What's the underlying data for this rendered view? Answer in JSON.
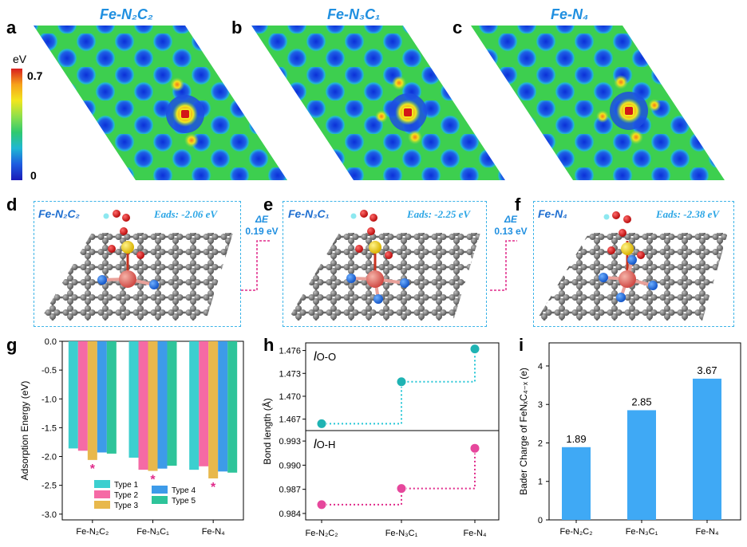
{
  "top": {
    "labels": [
      "a",
      "b",
      "c"
    ],
    "titles": [
      "Fe-N₂C₂",
      "Fe-N₃C₁",
      "Fe-N₄"
    ],
    "colorbar": {
      "unit": "eV",
      "max_label": "0.7",
      "min_label": "0"
    }
  },
  "mid": {
    "labels": [
      "d",
      "e",
      "f"
    ],
    "titles": [
      "Fe-N₂C₂",
      "Fe-N₃C₁",
      "Fe-N₄"
    ],
    "eads": [
      "Eads: -2.06 eV",
      "Eads: -2.25 eV",
      "Eads: -2.38 eV"
    ],
    "deltas": [
      {
        "symbol": "ΔE",
        "value": "0.19 eV"
      },
      {
        "symbol": "ΔE",
        "value": "0.13 eV"
      }
    ]
  },
  "colors": {
    "type1": "#3ccfcf",
    "type2": "#f56aa5",
    "type3": "#e8b84c",
    "type4": "#3d9be9",
    "type5": "#2ec49a",
    "bar_i": "#3fa9f5",
    "teal_ball": "#1fb3b3",
    "pink_ball": "#e6479c",
    "star": "#e02a8a"
  },
  "chart_data": [
    {
      "panel": "g",
      "type": "bar",
      "categories": [
        "Fe-N₂C₂",
        "Fe-N₃C₁",
        "Fe-N₄"
      ],
      "series": [
        {
          "name": "Type 1",
          "values": [
            -1.86,
            -2.02,
            -2.23
          ]
        },
        {
          "name": "Type 2",
          "values": [
            -1.9,
            -2.23,
            -2.17
          ]
        },
        {
          "name": "Type 3",
          "values": [
            -2.06,
            -2.25,
            -2.38
          ]
        },
        {
          "name": "Type 4",
          "values": [
            -1.93,
            -2.21,
            -2.26
          ]
        },
        {
          "name": "Type 5",
          "values": [
            -1.95,
            -2.16,
            -2.28
          ]
        }
      ],
      "starred_series": "Type 3",
      "star": "*",
      "ylabel": "Adsorption Energy (eV)",
      "ylim": [
        -3.1,
        0
      ],
      "yticks": [
        0.0,
        -0.5,
        -1.0,
        -1.5,
        -2.0,
        -2.5,
        -3.0
      ],
      "ytick_labels": [
        "0.0",
        "-0.5",
        "-1.0",
        "-1.5",
        "-2.0",
        "-2.5",
        "-3.0"
      ]
    },
    {
      "panel": "h",
      "type": "line",
      "categories": [
        "Fe-N₂C₂",
        "Fe-N₃C₁",
        "Fe-N₄"
      ],
      "ylabel": "Bond length (Å)",
      "subplots": [
        {
          "label_prefix": "l",
          "label_sub": "O-O",
          "values": [
            1.4664,
            1.4719,
            1.4762
          ],
          "ylim": [
            1.4655,
            1.477
          ],
          "yticks": [
            1.467,
            1.47,
            1.473,
            1.476
          ],
          "ytick_labels": [
            "1.467",
            "1.470",
            "1.473",
            "1.476"
          ]
        },
        {
          "label_prefix": "l",
          "label_sub": "O-H",
          "values": [
            0.9851,
            0.9871,
            0.9921
          ],
          "ylim": [
            0.9832,
            0.9943
          ],
          "yticks": [
            0.984,
            0.987,
            0.99,
            0.993
          ],
          "ytick_labels": [
            "0.984",
            "0.987",
            "0.990",
            "0.993"
          ]
        }
      ]
    },
    {
      "panel": "i",
      "type": "bar",
      "categories": [
        "Fe-N₂C₂",
        "Fe-N₃C₁",
        "Fe-N₄"
      ],
      "values": [
        1.89,
        2.85,
        3.67
      ],
      "value_labels": [
        "1.89",
        "2.85",
        "3.67"
      ],
      "ylabel": "Bader Charge of FeNₓC₄₋ₓ (e)",
      "ylim": [
        0,
        4.6
      ],
      "yticks": [
        0,
        1,
        2,
        3,
        4
      ],
      "ytick_labels": [
        "0",
        "1",
        "2",
        "3",
        "4"
      ]
    }
  ],
  "panel_labels_bottom": [
    "g",
    "h",
    "i"
  ]
}
